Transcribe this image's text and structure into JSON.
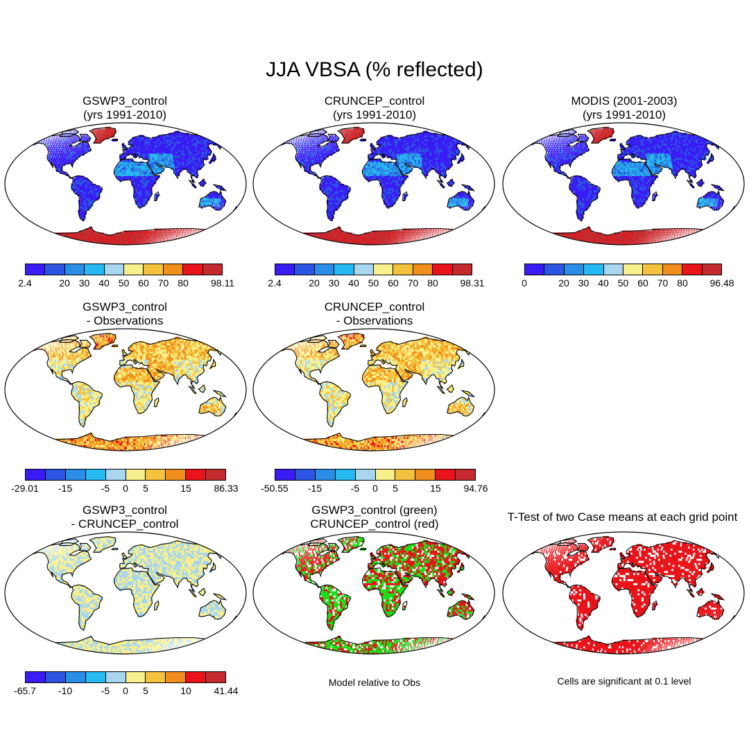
{
  "title": "JJA VBSA (% reflected)",
  "colors": {
    "abs_scale": [
      "#3a1cf5",
      "#2d55e3",
      "#2a8ee6",
      "#27b9f2",
      "#a7d6ee",
      "#f8f08c",
      "#f4c23c",
      "#f18f1c",
      "#e8141a",
      "#c52a2e"
    ],
    "diff_scale": [
      "#3a1cf5",
      "#2d55e3",
      "#2a8ee6",
      "#27b9f2",
      "#a7d6ee",
      "#f8f08c",
      "#f4c23c",
      "#f18f1c",
      "#e8141a",
      "#c52a2e"
    ],
    "green": "#19e019",
    "red": "#e8141a",
    "ocean": "#ffffff"
  },
  "panels": {
    "p1": {
      "title_line1": "GSWP3_control",
      "title_line2": "(yrs 1991-2010)",
      "labels": [
        "2.4",
        "20",
        "30",
        "40",
        "50",
        "60",
        "70",
        "80",
        "98.11"
      ]
    },
    "p2": {
      "title_line1": "CRUNCEP_control",
      "title_line2": "(yrs 1991-2010)",
      "labels": [
        "2.4",
        "20",
        "30",
        "40",
        "50",
        "60",
        "70",
        "80",
        "98.31"
      ]
    },
    "p3": {
      "title_line1": "MODIS (2001-2003)",
      "title_line2": "(yrs 1991-2010)",
      "labels": [
        "0",
        "20",
        "30",
        "40",
        "50",
        "60",
        "70",
        "80",
        "96.48"
      ]
    },
    "p4": {
      "title_line1": "GSWP3_control",
      "title_line2": "- Observations",
      "labels": [
        "-29.01",
        "-15",
        "-5",
        "0",
        "5",
        "15",
        "86.33"
      ]
    },
    "p5": {
      "title_line1": "CRUNCEP_control",
      "title_line2": "- Observations",
      "labels": [
        "-50.55",
        "-15",
        "-5",
        "0",
        "5",
        "15",
        "94.76"
      ]
    },
    "p6": {
      "title_line1": "GSWP3_control",
      "title_line2": "- CRUNCEP_control",
      "labels": [
        "-65.7",
        "-10",
        "-5",
        "0",
        "5",
        "10",
        "41.44"
      ]
    },
    "p7": {
      "title_line1": "GSWP3_control (green)",
      "title_line2": "CRUNCEP_control (red)",
      "note": "Model relative to Obs"
    },
    "p8": {
      "title_line1": "T-Test of two Case means at each grid point",
      "note": "Cells are significant at 0.1 level"
    }
  }
}
